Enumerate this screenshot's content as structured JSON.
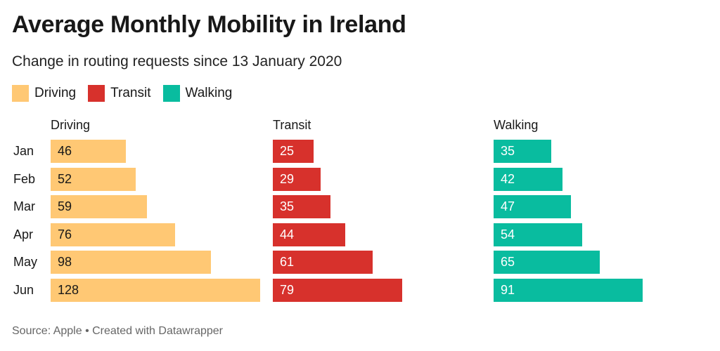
{
  "title": "Average Monthly Mobility in Ireland",
  "subtitle": "Change in routing requests since 13 January 2020",
  "source": "Source: Apple • Created with Datawrapper",
  "chart_data": {
    "type": "bar",
    "title": "Average Monthly Mobility in Ireland",
    "subtitle": "Change in routing requests since 13 January 2020",
    "categories": [
      "Jan",
      "Feb",
      "Mar",
      "Apr",
      "May",
      "Jun"
    ],
    "legend": [
      "Driving",
      "Transit",
      "Walking"
    ],
    "series": [
      {
        "name": "Driving",
        "color": "#ffc874",
        "text_color": "#181818",
        "values": [
          46,
          52,
          59,
          76,
          98,
          128
        ]
      },
      {
        "name": "Transit",
        "color": "#d7312c",
        "text_color": "#ffffff",
        "values": [
          25,
          29,
          35,
          44,
          61,
          79
        ]
      },
      {
        "name": "Walking",
        "color": "#09bc9f",
        "text_color": "#ffffff",
        "values": [
          35,
          42,
          47,
          54,
          65,
          91
        ]
      }
    ]
  }
}
